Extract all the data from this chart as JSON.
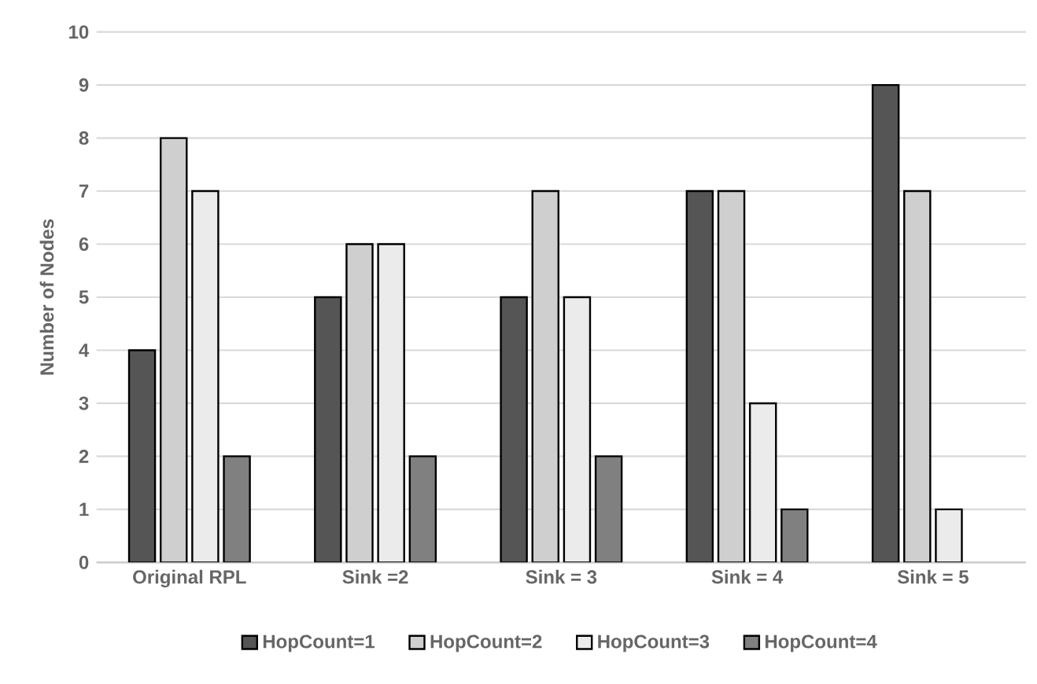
{
  "chart_data": {
    "type": "bar",
    "ylabel": "Number of Nodes",
    "categories": [
      "Original RPL",
      "Sink =2",
      "Sink = 3",
      "Sink = 4",
      "Sink = 5"
    ],
    "series": [
      {
        "name": "HopCount=1",
        "color": "#555555",
        "values": [
          4,
          5,
          5,
          7,
          9
        ]
      },
      {
        "name": "HopCount=2",
        "color": "#cfcfcf",
        "values": [
          8,
          6,
          7,
          7,
          7
        ]
      },
      {
        "name": "HopCount=3",
        "color": "#ebebeb",
        "values": [
          7,
          6,
          5,
          3,
          1
        ]
      },
      {
        "name": "HopCount=4",
        "color": "#808080",
        "values": [
          2,
          2,
          2,
          1,
          null
        ]
      }
    ],
    "ylim": [
      0,
      10
    ],
    "yticks": [
      0,
      1,
      2,
      3,
      4,
      5,
      6,
      7,
      8,
      9,
      10
    ],
    "grid": "y",
    "legend": "bottom"
  }
}
